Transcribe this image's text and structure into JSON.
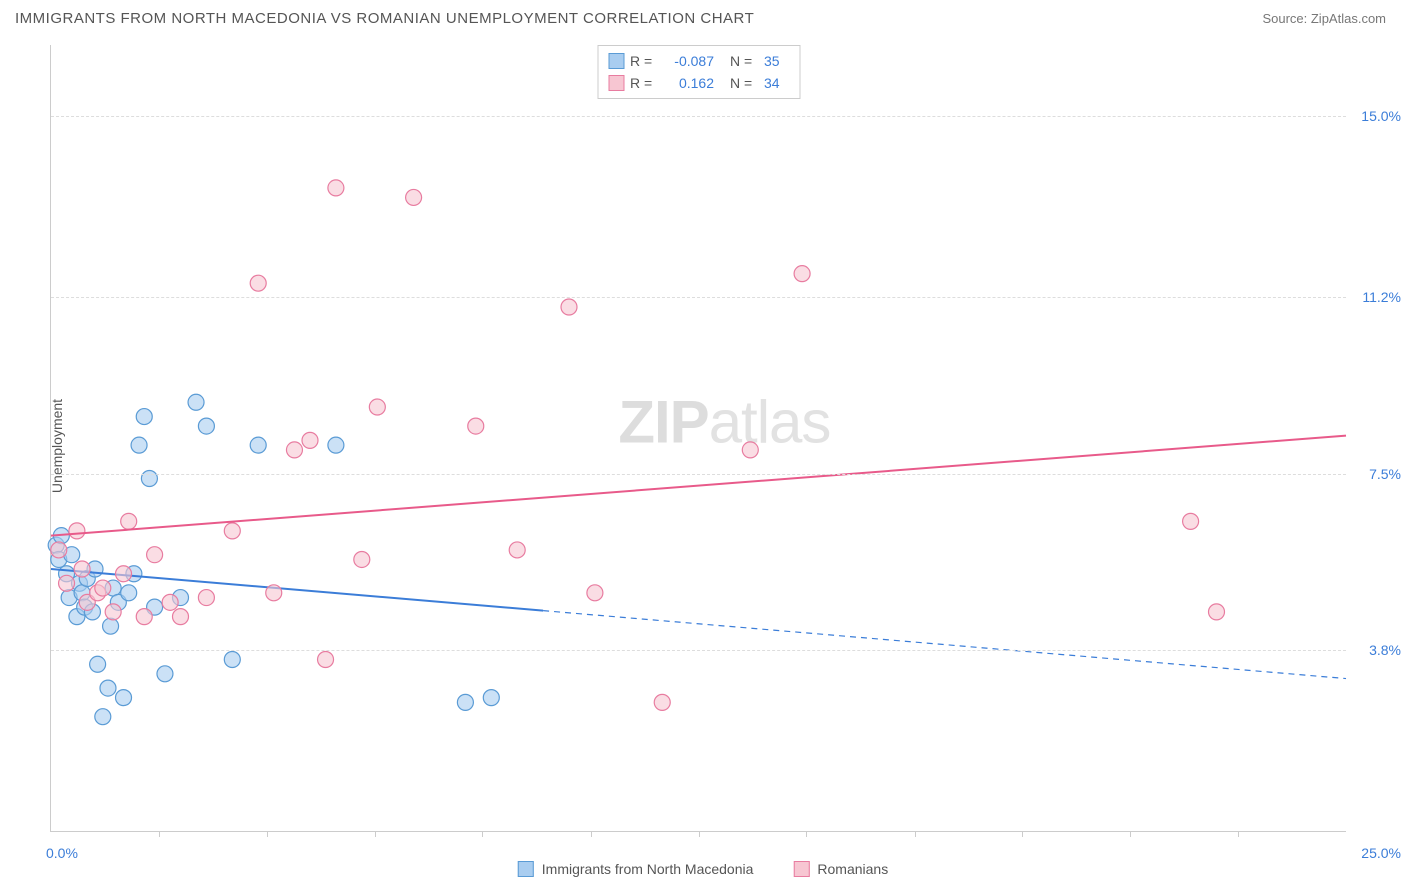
{
  "title": "IMMIGRANTS FROM NORTH MACEDONIA VS ROMANIAN UNEMPLOYMENT CORRELATION CHART",
  "source": "Source: ZipAtlas.com",
  "watermark_bold": "ZIP",
  "watermark_thin": "atlas",
  "chart": {
    "type": "scatter",
    "ylabel": "Unemployment",
    "xlim": [
      0,
      25
    ],
    "ylim": [
      0,
      16.5
    ],
    "background_color": "#ffffff",
    "grid_color": "#dddddd",
    "axis_color": "#cccccc",
    "yticks": [
      {
        "value": 3.8,
        "label": "3.8%"
      },
      {
        "value": 7.5,
        "label": "7.5%"
      },
      {
        "value": 11.2,
        "label": "11.2%"
      },
      {
        "value": 15.0,
        "label": "15.0%"
      }
    ],
    "xtick_positions": [
      2.08,
      4.17,
      6.25,
      8.33,
      10.42,
      12.5,
      14.58,
      16.67,
      18.75,
      20.83,
      22.92
    ],
    "xaxis_labels": [
      {
        "value": 0,
        "label": "0.0%"
      },
      {
        "value": 25,
        "label": "25.0%"
      }
    ],
    "series": [
      {
        "name": "Immigrants from North Macedonia",
        "color_fill": "#a9cdf0",
        "color_stroke": "#5a9bd5",
        "marker_radius": 8,
        "fill_opacity": 0.6,
        "R": "-0.087",
        "N": "35",
        "trend": {
          "x1": 0,
          "y1": 5.5,
          "x2": 25,
          "y2": 3.2,
          "solid_until_x": 9.5
        },
        "trend_color": "#3b7dd8",
        "trend_width": 2,
        "points": [
          [
            0.1,
            6.0
          ],
          [
            0.15,
            5.7
          ],
          [
            0.2,
            6.2
          ],
          [
            0.3,
            5.4
          ],
          [
            0.35,
            4.9
          ],
          [
            0.4,
            5.8
          ],
          [
            0.5,
            4.5
          ],
          [
            0.55,
            5.2
          ],
          [
            0.6,
            5.0
          ],
          [
            0.65,
            4.7
          ],
          [
            0.7,
            5.3
          ],
          [
            0.8,
            4.6
          ],
          [
            0.85,
            5.5
          ],
          [
            0.9,
            3.5
          ],
          [
            1.0,
            2.4
          ],
          [
            1.1,
            3.0
          ],
          [
            1.15,
            4.3
          ],
          [
            1.2,
            5.1
          ],
          [
            1.3,
            4.8
          ],
          [
            1.4,
            2.8
          ],
          [
            1.5,
            5.0
          ],
          [
            1.6,
            5.4
          ],
          [
            1.7,
            8.1
          ],
          [
            1.8,
            8.7
          ],
          [
            1.9,
            7.4
          ],
          [
            2.0,
            4.7
          ],
          [
            2.2,
            3.3
          ],
          [
            2.5,
            4.9
          ],
          [
            2.8,
            9.0
          ],
          [
            3.0,
            8.5
          ],
          [
            3.5,
            3.6
          ],
          [
            4.0,
            8.1
          ],
          [
            5.5,
            8.1
          ],
          [
            8.0,
            2.7
          ],
          [
            8.5,
            2.8
          ]
        ]
      },
      {
        "name": "Romanians",
        "color_fill": "#f7c6d2",
        "color_stroke": "#e87ca0",
        "marker_radius": 8,
        "fill_opacity": 0.6,
        "R": "0.162",
        "N": "34",
        "trend": {
          "x1": 0,
          "y1": 6.2,
          "x2": 25,
          "y2": 8.3,
          "solid_until_x": 25
        },
        "trend_color": "#e85a8a",
        "trend_width": 2,
        "points": [
          [
            0.15,
            5.9
          ],
          [
            0.3,
            5.2
          ],
          [
            0.5,
            6.3
          ],
          [
            0.6,
            5.5
          ],
          [
            0.7,
            4.8
          ],
          [
            0.9,
            5.0
          ],
          [
            1.0,
            5.1
          ],
          [
            1.2,
            4.6
          ],
          [
            1.4,
            5.4
          ],
          [
            1.5,
            6.5
          ],
          [
            1.8,
            4.5
          ],
          [
            2.0,
            5.8
          ],
          [
            2.3,
            4.8
          ],
          [
            2.5,
            4.5
          ],
          [
            3.0,
            4.9
          ],
          [
            3.5,
            6.3
          ],
          [
            4.0,
            11.5
          ],
          [
            4.3,
            5.0
          ],
          [
            4.7,
            8.0
          ],
          [
            5.0,
            8.2
          ],
          [
            5.3,
            3.6
          ],
          [
            5.5,
            13.5
          ],
          [
            6.0,
            5.7
          ],
          [
            6.3,
            8.9
          ],
          [
            7.0,
            13.3
          ],
          [
            8.2,
            8.5
          ],
          [
            9.0,
            5.9
          ],
          [
            10.0,
            11.0
          ],
          [
            10.5,
            5.0
          ],
          [
            11.8,
            2.7
          ],
          [
            13.5,
            8.0
          ],
          [
            14.5,
            11.7
          ],
          [
            22.0,
            6.5
          ],
          [
            22.5,
            4.6
          ]
        ]
      }
    ]
  },
  "colors": {
    "tick_label": "#3b7dd8",
    "text": "#555555"
  }
}
